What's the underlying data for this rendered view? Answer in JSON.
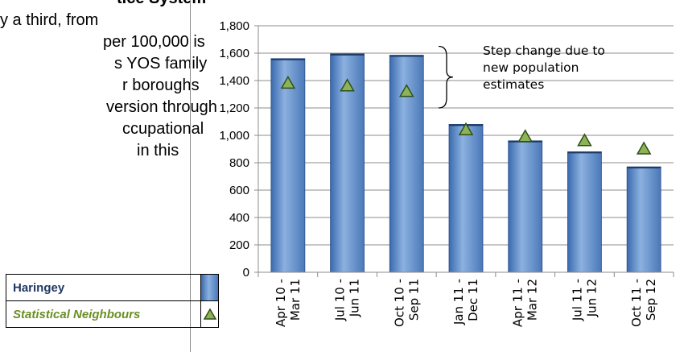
{
  "left_text": {
    "lines": [
      "tice System",
      "y a third, from",
      "per 100,000 is",
      "s YOS family",
      "r boroughs",
      "version through",
      "ccupational",
      "in this"
    ]
  },
  "legend": {
    "items": [
      {
        "label": "Haringey",
        "symbol": "bar"
      },
      {
        "label": "Statistical Neighbours",
        "symbol": "triangle"
      }
    ]
  },
  "colors": {
    "bar_dark": "#3a6aae",
    "bar_light": "#8cb1e0",
    "triangle_fill": "#8db356",
    "triangle_stroke": "#2f4f1a",
    "haringey_label": "#1f3864",
    "neighbours_label": "#6b8e23"
  },
  "chart_data": {
    "type": "bar",
    "categories": [
      [
        "Apr 10 -",
        "Mar 11"
      ],
      [
        "Jul 10 -",
        "Jun 11"
      ],
      [
        "Oct 10 -",
        "Sep 11"
      ],
      [
        "Jan 11 -",
        "Dec 11"
      ],
      [
        "Apr 11 -",
        "Mar 12"
      ],
      [
        "Jul 11 -",
        "Jun 12"
      ],
      [
        "Oct 11 -",
        "Sep 12"
      ]
    ],
    "series": [
      {
        "name": "Haringey",
        "kind": "bar",
        "values": [
          1560,
          1595,
          1585,
          1080,
          960,
          880,
          770
        ]
      },
      {
        "name": "Statistical Neighbours",
        "kind": "marker",
        "marker": "triangle",
        "values": [
          1380,
          1360,
          1320,
          1040,
          990,
          960,
          900
        ]
      }
    ],
    "yticks": [
      "0",
      "200",
      "400",
      "600",
      "800",
      "1,000",
      "1,200",
      "1,400",
      "1,600",
      "1,800"
    ],
    "ylim": [
      0,
      1800
    ],
    "grid": true,
    "annotation": {
      "lines": [
        "Step change due to",
        "new population",
        "estimates"
      ],
      "bracket_from": 1200,
      "bracket_to": 1650
    }
  }
}
